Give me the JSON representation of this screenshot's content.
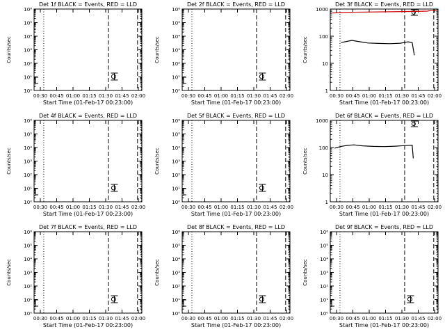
{
  "colors": {
    "events": "#000000",
    "lld": "#cc0000",
    "background": "#ffffff"
  },
  "chart_data": [
    {
      "type": "line",
      "title": "Det 1f BLACK = Events, RED = LLD",
      "xlabel": "Start Time (01-Feb-17 00:23:00)",
      "ylabel": "Counts/sec",
      "yscale": "log",
      "ylim": [
        1,
        1000000
      ],
      "yticklabels": [
        "10⁰",
        "10¹",
        "10²",
        "10³",
        "10⁴",
        "10⁵",
        "10⁶"
      ],
      "xticklabels": [
        "00:30",
        "00:45",
        "01:00",
        "01:15",
        "01:30",
        "01:45",
        "02:00"
      ],
      "series": []
    },
    {
      "type": "line",
      "title": "Det 2f BLACK = Events, RED = LLD",
      "xlabel": "Start Time (01-Feb-17 00:23:00)",
      "ylabel": "Counts/sec",
      "yscale": "log",
      "ylim": [
        1,
        1000000
      ],
      "yticklabels": [
        "10⁰",
        "10¹",
        "10²",
        "10³",
        "10⁴",
        "10⁵",
        "10⁶"
      ],
      "xticklabels": [
        "00:30",
        "00:45",
        "01:00",
        "01:15",
        "01:30",
        "01:45",
        "02:00"
      ],
      "series": []
    },
    {
      "type": "line",
      "title": "Det 3f BLACK = Events, RED = LLD",
      "xlabel": "Start Time (01-Feb-17 00:23:00)",
      "ylabel": "Counts/sec",
      "yscale": "log",
      "ylim": [
        1,
        1000
      ],
      "yticklabels": [
        "1",
        "10",
        "100",
        "1000"
      ],
      "xticklabels": [
        "00:30",
        "00:45",
        "01:00",
        "01:15",
        "01:30",
        "01:45",
        "02:00"
      ],
      "series": [
        {
          "color": "#cc0000",
          "points": [
            [
              0.02,
              720
            ],
            [
              0.2,
              760
            ],
            [
              0.5,
              790
            ],
            [
              0.8,
              820
            ],
            [
              0.9,
              840
            ],
            [
              0.93,
              880
            ],
            [
              0.97,
              900
            ],
            [
              0.99,
              930
            ]
          ]
        },
        {
          "color": "#000000",
          "points": [
            [
              0.1,
              58
            ],
            [
              0.15,
              64
            ],
            [
              0.2,
              70
            ],
            [
              0.28,
              62
            ],
            [
              0.35,
              56
            ],
            [
              0.45,
              54
            ],
            [
              0.55,
              53
            ],
            [
              0.65,
              55
            ],
            [
              0.72,
              62
            ],
            [
              0.76,
              58
            ],
            [
              0.78,
              20
            ]
          ]
        }
      ]
    },
    {
      "type": "line",
      "title": "Det 4f BLACK = Events, RED = LLD",
      "xlabel": "Start Time (01-Feb-17 00:23:00)",
      "ylabel": "Counts/sec",
      "yscale": "log",
      "ylim": [
        1,
        1000000
      ],
      "yticklabels": [
        "10⁰",
        "10¹",
        "10²",
        "10³",
        "10⁴",
        "10⁵",
        "10⁶"
      ],
      "xticklabels": [
        "00:30",
        "00:45",
        "01:00",
        "01:15",
        "01:30",
        "01:45",
        "02:00"
      ],
      "series": []
    },
    {
      "type": "line",
      "title": "Det 5f BLACK = Events, RED = LLD",
      "xlabel": "Start Time (01-Feb-17 00:23:00)",
      "ylabel": "Counts/sec",
      "yscale": "log",
      "ylim": [
        1,
        1000000
      ],
      "yticklabels": [
        "10⁰",
        "10¹",
        "10²",
        "10³",
        "10⁴",
        "10⁵",
        "10⁶"
      ],
      "xticklabels": [
        "00:30",
        "00:45",
        "01:00",
        "01:15",
        "01:30",
        "01:45",
        "02:00"
      ],
      "series": []
    },
    {
      "type": "line",
      "title": "Det 6f BLACK = Events, RED = LLD",
      "xlabel": "Start Time (01-Feb-17 00:23:00)",
      "ylabel": "Counts/sec",
      "yscale": "log",
      "ylim": [
        1,
        1000
      ],
      "yticklabels": [
        "1",
        "10",
        "100",
        "1000"
      ],
      "xticklabels": [
        "00:30",
        "00:45",
        "01:00",
        "01:15",
        "01:30",
        "01:45",
        "02:00"
      ],
      "series": [
        {
          "color": "#000000",
          "points": [
            [
              0.04,
              95
            ],
            [
              0.1,
              110
            ],
            [
              0.16,
              120
            ],
            [
              0.22,
              125
            ],
            [
              0.3,
              115
            ],
            [
              0.4,
              110
            ],
            [
              0.5,
              108
            ],
            [
              0.6,
              112
            ],
            [
              0.7,
              118
            ],
            [
              0.76,
              122
            ],
            [
              0.77,
              40
            ]
          ]
        }
      ]
    },
    {
      "type": "line",
      "title": "Det 7f BLACK = Events, RED = LLD",
      "xlabel": "Start Time (01-Feb-17 00:23:00)",
      "ylabel": "Counts/sec",
      "yscale": "log",
      "ylim": [
        1,
        1000000
      ],
      "yticklabels": [
        "10⁰",
        "10¹",
        "10²",
        "10³",
        "10⁴",
        "10⁵",
        "10⁶"
      ],
      "xticklabels": [
        "00:30",
        "00:45",
        "01:00",
        "01:15",
        "01:30",
        "01:45",
        "02:00"
      ],
      "series": []
    },
    {
      "type": "line",
      "title": "Det 8f BLACK = Events, RED = LLD",
      "xlabel": "Start Time (01-Feb-17 00:23:00)",
      "ylabel": "Counts/sec",
      "yscale": "log",
      "ylim": [
        1,
        1000000
      ],
      "yticklabels": [
        "10⁰",
        "10¹",
        "10²",
        "10³",
        "10⁴",
        "10⁵",
        "10⁶"
      ],
      "xticklabels": [
        "00:30",
        "00:45",
        "01:00",
        "01:15",
        "01:30",
        "01:45",
        "02:00"
      ],
      "series": []
    },
    {
      "type": "line",
      "title": "Det 9f BLACK = Events, RED = LLD",
      "xlabel": "Start Time (01-Feb-17 00:23:00)",
      "ylabel": "Counts/sec",
      "yscale": "log",
      "ylim": [
        1,
        1000000
      ],
      "yticklabels": [
        "10⁰",
        "10¹",
        "10²",
        "10³",
        "10⁴",
        "10⁵",
        "10⁶"
      ],
      "xticklabels": [
        "00:30",
        "00:45",
        "01:00",
        "01:15",
        "01:30",
        "01:45",
        "02:00"
      ],
      "series": []
    }
  ]
}
